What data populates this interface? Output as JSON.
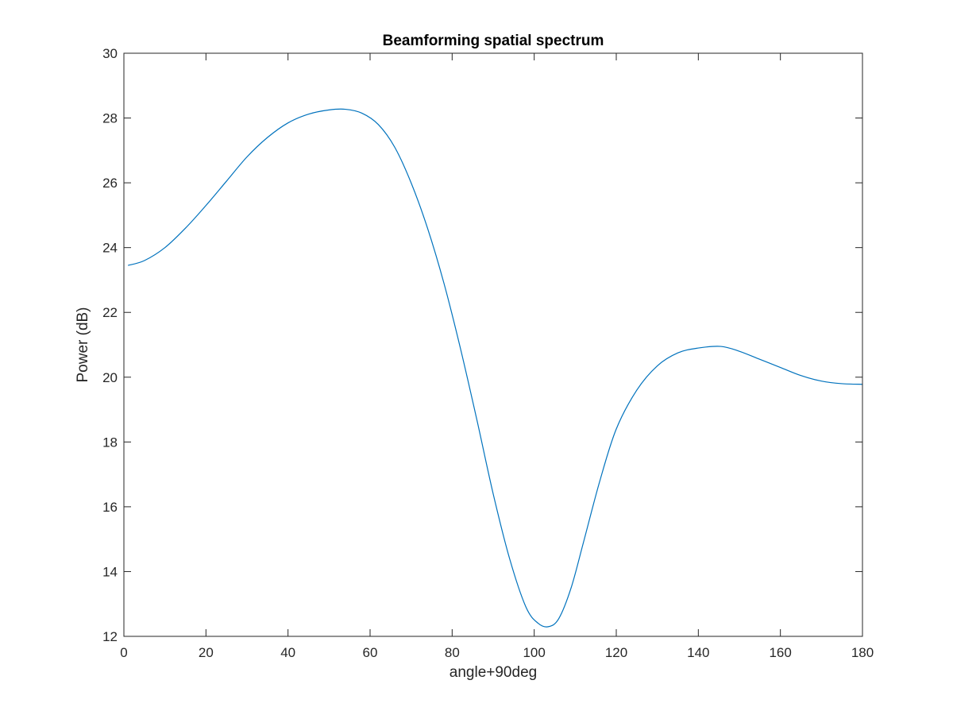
{
  "chart_data": {
    "type": "line",
    "title": "Beamforming spatial spectrum",
    "xlabel": "angle+90deg",
    "ylabel": "Power (dB)",
    "xlim": [
      0,
      180
    ],
    "ylim": [
      12,
      30
    ],
    "xticks": [
      0,
      20,
      40,
      60,
      80,
      100,
      120,
      140,
      160,
      180
    ],
    "yticks": [
      12,
      14,
      16,
      18,
      20,
      22,
      24,
      26,
      28,
      30
    ],
    "grid": false,
    "box": true,
    "series": [
      {
        "color": "#0072BD",
        "x": [
          1,
          5,
          10,
          15,
          20,
          25,
          30,
          35,
          40,
          45,
          50,
          54,
          58,
          62,
          66,
          70,
          74,
          78,
          82,
          86,
          90,
          94,
          98,
          101,
          103.5,
          106,
          109,
          112,
          116,
          120,
          125,
          130,
          135,
          140,
          145.5,
          150,
          155,
          160,
          165,
          170,
          175,
          180
        ],
        "y": [
          23.45,
          23.6,
          24.0,
          24.6,
          25.3,
          26.05,
          26.8,
          27.4,
          27.85,
          28.12,
          28.25,
          28.27,
          28.15,
          27.8,
          27.1,
          26.0,
          24.6,
          22.9,
          20.9,
          18.7,
          16.4,
          14.4,
          12.9,
          12.4,
          12.3,
          12.55,
          13.5,
          14.9,
          16.8,
          18.4,
          19.6,
          20.35,
          20.75,
          20.9,
          20.95,
          20.8,
          20.55,
          20.3,
          20.05,
          19.88,
          19.8,
          19.78
        ]
      }
    ]
  }
}
